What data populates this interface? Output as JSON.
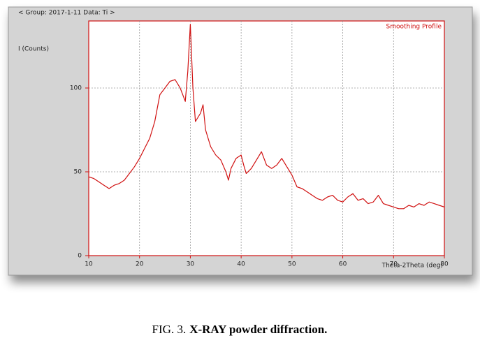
{
  "chart_data": {
    "type": "line",
    "header": "< Group: 2017-1-11   Data: Ti >",
    "ylabel": "I (Counts)",
    "xlabel": "Theta-2Theta (deg)",
    "caption_label": "FIG. 3.",
    "caption_text": "X-RAY powder diffraction.",
    "xlim": [
      10,
      80
    ],
    "ylim": [
      0,
      140
    ],
    "xticks": [
      10,
      20,
      30,
      40,
      50,
      60,
      70,
      80
    ],
    "yticks": [
      0,
      50,
      100
    ],
    "grid": true,
    "legend": "top-right",
    "series": [
      {
        "name": "Smoothing Profile",
        "color": "#d01010",
        "x": [
          10,
          11,
          12,
          13,
          14,
          15,
          16,
          17,
          18,
          19,
          20,
          21,
          22,
          23,
          24,
          25,
          26,
          27,
          28,
          29,
          29.5,
          30,
          30.5,
          31,
          32,
          32.5,
          33,
          34,
          35,
          36,
          37,
          37.5,
          38,
          39,
          40,
          40.5,
          41,
          42,
          43,
          44,
          45,
          46,
          47,
          48,
          49,
          50,
          51,
          52,
          53,
          54,
          55,
          56,
          57,
          58,
          59,
          60,
          61,
          62,
          63,
          64,
          65,
          66,
          67,
          68,
          69,
          70,
          71,
          72,
          73,
          74,
          75,
          76,
          77,
          78,
          79,
          80
        ],
        "values": [
          47,
          46,
          44,
          42,
          40,
          42,
          43,
          45,
          49,
          53,
          58,
          64,
          70,
          80,
          96,
          100,
          104,
          105,
          100,
          92,
          110,
          138,
          100,
          80,
          85,
          90,
          75,
          65,
          60,
          57,
          50,
          45,
          52,
          58,
          60,
          54,
          49,
          52,
          57,
          62,
          54,
          52,
          54,
          58,
          53,
          48,
          41,
          40,
          38,
          36,
          34,
          33,
          35,
          36,
          33,
          32,
          35,
          37,
          33,
          34,
          31,
          32,
          36,
          31,
          30,
          29,
          28,
          28,
          30,
          29,
          31,
          30,
          32,
          31,
          30,
          29
        ]
      }
    ]
  }
}
